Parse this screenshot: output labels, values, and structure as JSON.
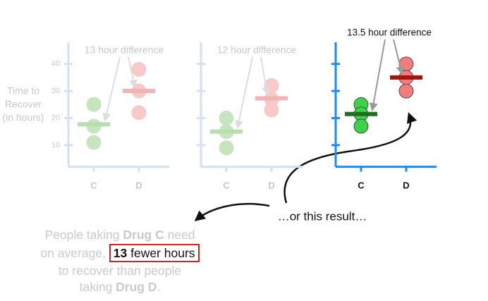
{
  "chart_data": [
    {
      "type": "strip",
      "annotation": "13 hour difference",
      "faded": true,
      "ylabel": [
        "Time to",
        "Recover",
        "(in hours)"
      ],
      "categories": [
        "C",
        "D"
      ],
      "values": [
        [
          25,
          17,
          11
        ],
        [
          38,
          30,
          22
        ]
      ],
      "means": [
        17.7,
        30
      ],
      "colors": [
        "#c6e5bf",
        "#f7c9c9"
      ],
      "mean_colors": [
        "#b9dcb1",
        "#f2b3b3"
      ],
      "axis_color": "#cfe2f6",
      "ylim": [
        2,
        48
      ],
      "yticks": [
        10,
        20,
        30,
        40
      ]
    },
    {
      "type": "strip",
      "annotation": "12 hour difference",
      "faded": true,
      "categories": [
        "C",
        "D"
      ],
      "values": [
        [
          20,
          15,
          9
        ],
        [
          32,
          27,
          23
        ]
      ],
      "means": [
        15,
        27.3
      ],
      "colors": [
        "#c6e5bf",
        "#f7c9c9"
      ],
      "mean_colors": [
        "#b9dcb1",
        "#f2b3b3"
      ],
      "axis_color": "#cfe2f6",
      "ylim": [
        2,
        48
      ],
      "yticks": [
        10,
        20,
        30,
        40
      ]
    },
    {
      "type": "strip",
      "annotation": "13.5 hour difference",
      "faded": false,
      "categories": [
        "C",
        "D"
      ],
      "values": [
        [
          25,
          21.5,
          17
        ],
        [
          40,
          35,
          30
        ]
      ],
      "means": [
        21.5,
        35
      ],
      "colors": [
        "#3fd14a",
        "#f47c7c"
      ],
      "mean_colors": [
        "#1d6e1d",
        "#a5140f"
      ],
      "axis_color": "#1a8cff",
      "ylim": [
        2,
        48
      ],
      "yticks": [
        10,
        20,
        30,
        40
      ]
    }
  ],
  "caption": "…or this result…",
  "statement": {
    "line1": [
      "People taking ",
      "Drug C",
      " need"
    ],
    "line2": [
      "on average, ",
      "13",
      " fewer hours"
    ],
    "line3": "to recover than people",
    "line4": [
      "taking ",
      "Drug D",
      "."
    ]
  }
}
